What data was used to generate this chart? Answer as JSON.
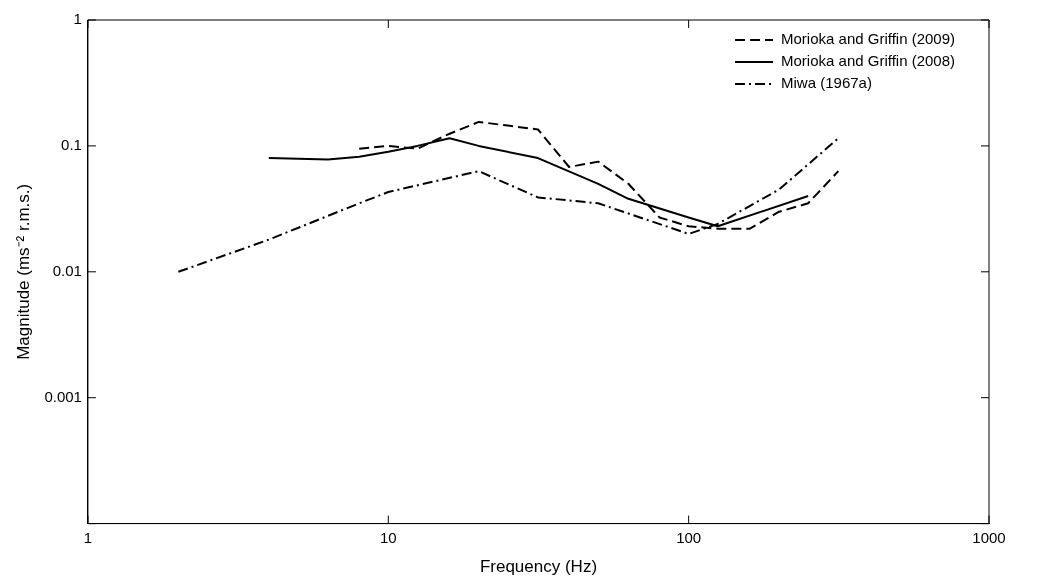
{
  "chart_data": {
    "type": "line",
    "xlabel": "Frequency (Hz)",
    "ylabel": "Magnitude (ms⁻² r.m.s.)",
    "log": "xy",
    "xlim": [
      1,
      1000
    ],
    "xticks": [
      1,
      10,
      100,
      1000
    ],
    "ylim": [
      0.0001,
      1
    ],
    "yticks": [
      {
        "value": 0.0001,
        "label": null
      },
      0.001,
      0.01,
      0.1,
      1
    ],
    "grid": false,
    "legend": "top right",
    "marker": "none",
    "series": [
      {
        "name": "Morioka and Griffin (2009)",
        "color": "#000000",
        "line_style": "dashed",
        "x": [
          8,
          10,
          12.5,
          16,
          20,
          25,
          31.5,
          40,
          50,
          63,
          80,
          100,
          125,
          160,
          200,
          250,
          315
        ],
        "values": [
          0.095,
          0.1,
          0.095,
          0.125,
          0.155,
          0.145,
          0.135,
          0.068,
          0.075,
          0.05,
          0.027,
          0.023,
          0.022,
          0.022,
          0.03,
          0.035,
          0.063
        ]
      },
      {
        "name": "Morioka and Griffin (2008)",
        "color": "#000000",
        "line_style": "solid",
        "x": [
          4,
          6.3,
          8,
          10,
          12.5,
          16,
          20,
          31.5,
          50,
          63,
          100,
          125,
          250
        ],
        "values": [
          0.08,
          0.078,
          0.082,
          0.09,
          0.1,
          0.115,
          0.1,
          0.08,
          0.05,
          0.038,
          0.027,
          0.023,
          0.04
        ]
      },
      {
        "name": "Miwa (1967a)",
        "color": "#000000",
        "line_style": "dashdot",
        "x": [
          2,
          4,
          8,
          10,
          20,
          31.5,
          50,
          100,
          125,
          200,
          315
        ],
        "values": [
          0.01,
          0.018,
          0.035,
          0.043,
          0.063,
          0.039,
          0.035,
          0.02,
          0.024,
          0.045,
          0.115
        ]
      }
    ]
  }
}
